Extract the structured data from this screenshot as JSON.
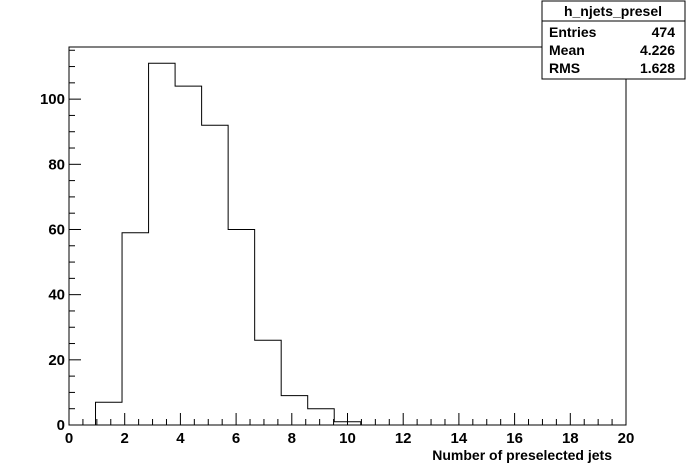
{
  "chart_data": {
    "type": "bar",
    "histogram_name": "h_njets_presel",
    "xlabel": "Number of preselected jets",
    "ylabel": "",
    "xlim": [
      0,
      20
    ],
    "ylim": [
      0,
      116
    ],
    "x_ticks": [
      0,
      2,
      4,
      6,
      8,
      10,
      12,
      14,
      16,
      18,
      20
    ],
    "y_ticks": [
      0,
      20,
      40,
      60,
      80,
      100
    ],
    "bin_width": 0.952,
    "bins": [
      {
        "low": 0.0,
        "value": 0
      },
      {
        "low": 0.952,
        "value": 7
      },
      {
        "low": 1.905,
        "value": 59
      },
      {
        "low": 2.857,
        "value": 111
      },
      {
        "low": 3.81,
        "value": 104
      },
      {
        "low": 4.762,
        "value": 92
      },
      {
        "low": 5.714,
        "value": 60
      },
      {
        "low": 6.667,
        "value": 26
      },
      {
        "low": 7.619,
        "value": 9
      },
      {
        "low": 8.571,
        "value": 5
      },
      {
        "low": 9.524,
        "value": 1
      },
      {
        "low": 10.476,
        "value": 0
      },
      {
        "low": 11.429,
        "value": 0
      },
      {
        "low": 12.381,
        "value": 0
      },
      {
        "low": 13.333,
        "value": 0
      },
      {
        "low": 14.286,
        "value": 0
      },
      {
        "low": 15.238,
        "value": 0
      },
      {
        "low": 16.19,
        "value": 0
      },
      {
        "low": 17.143,
        "value": 0
      },
      {
        "low": 18.095,
        "value": 0
      },
      {
        "low": 19.048,
        "value": 0
      }
    ],
    "stats_box": {
      "title": "h_njets_presel",
      "rows": [
        {
          "label": "Entries",
          "value": "474"
        },
        {
          "label": "Mean",
          "value": "4.226"
        },
        {
          "label": "RMS",
          "value": "1.628"
        }
      ]
    },
    "grid": false,
    "legend": "top-right"
  }
}
